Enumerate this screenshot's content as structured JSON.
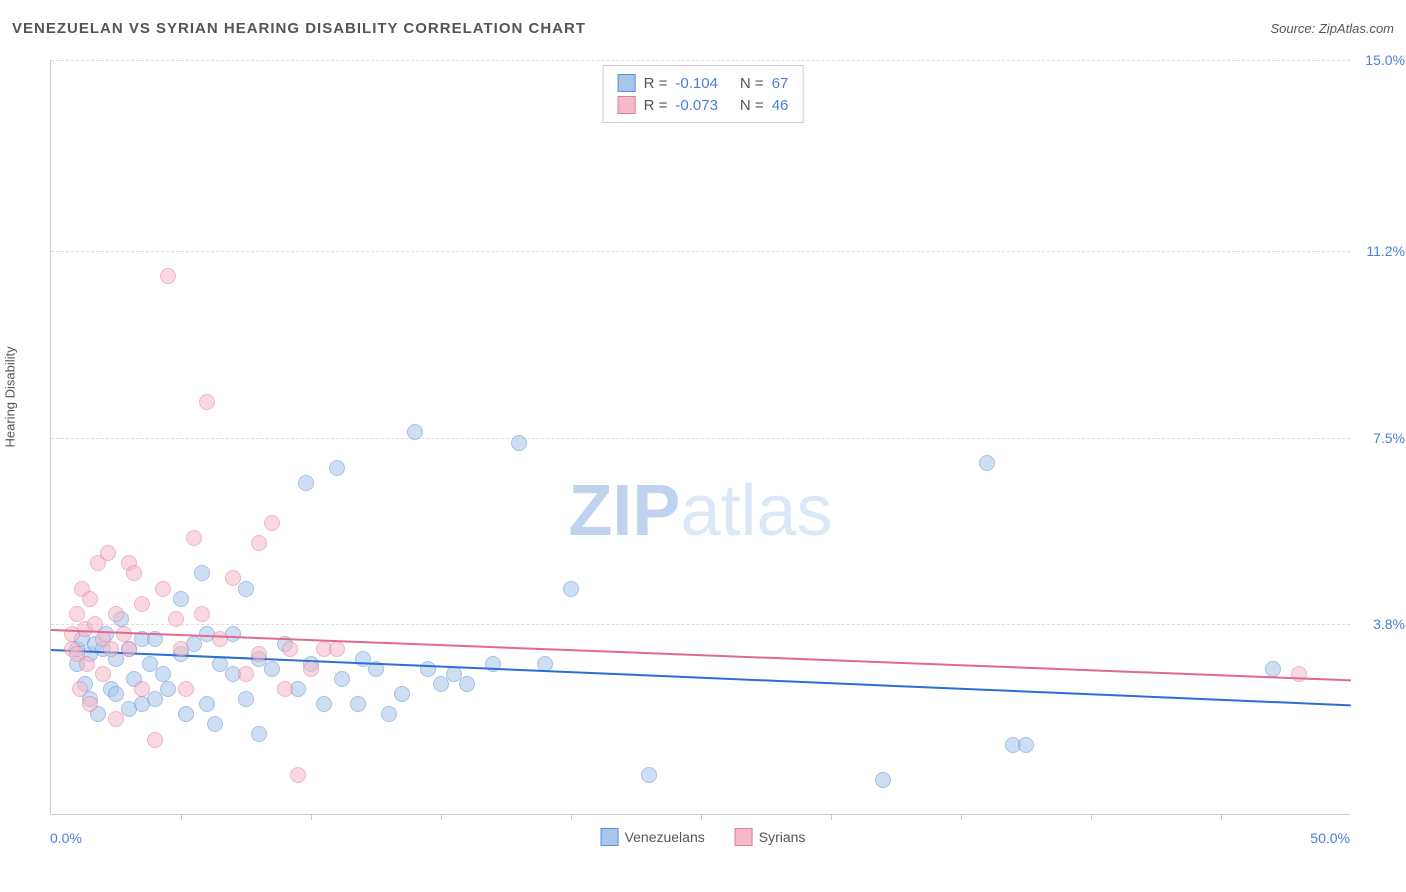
{
  "title": "VENEZUELAN VS SYRIAN HEARING DISABILITY CORRELATION CHART",
  "source": "Source: ZipAtlas.com",
  "watermark_bold": "ZIP",
  "watermark_light": "atlas",
  "chart": {
    "type": "scatter",
    "x_axis": {
      "min": 0,
      "max": 50,
      "label_min": "0.0%",
      "label_max": "50.0%",
      "tick_step": 5
    },
    "y_axis": {
      "min": 0,
      "max": 15,
      "title": "Hearing Disability",
      "ticks": [
        {
          "value": 3.8,
          "label": "3.8%"
        },
        {
          "value": 7.5,
          "label": "7.5%"
        },
        {
          "value": 11.2,
          "label": "11.2%"
        },
        {
          "value": 15.0,
          "label": "15.0%"
        }
      ]
    },
    "series": [
      {
        "name": "Venezuelans",
        "fill": "#a8c6ea",
        "stroke": "#5b8fd6",
        "opacity": 0.55,
        "marker_radius": 8,
        "trend": {
          "color": "#2b6fd6",
          "y_at_x0": 3.3,
          "y_at_xmax": 2.2
        },
        "stats": {
          "R": "-0.104",
          "N": "67"
        },
        "points": [
          [
            1,
            3.3
          ],
          [
            1,
            3.0
          ],
          [
            1.2,
            3.5
          ],
          [
            1.3,
            2.6
          ],
          [
            1.5,
            3.2
          ],
          [
            1.5,
            2.3
          ],
          [
            1.7,
            3.4
          ],
          [
            1.8,
            2.0
          ],
          [
            2,
            3.3
          ],
          [
            2.1,
            3.6
          ],
          [
            2.3,
            2.5
          ],
          [
            2.5,
            3.1
          ],
          [
            2.5,
            2.4
          ],
          [
            2.7,
            3.9
          ],
          [
            3,
            3.3
          ],
          [
            3,
            2.1
          ],
          [
            3.2,
            2.7
          ],
          [
            3.5,
            3.5
          ],
          [
            3.5,
            2.2
          ],
          [
            3.8,
            3.0
          ],
          [
            4,
            3.5
          ],
          [
            4,
            2.3
          ],
          [
            4.3,
            2.8
          ],
          [
            4.5,
            2.5
          ],
          [
            5,
            4.3
          ],
          [
            5,
            3.2
          ],
          [
            5.2,
            2.0
          ],
          [
            5.5,
            3.4
          ],
          [
            5.8,
            4.8
          ],
          [
            6,
            3.6
          ],
          [
            6,
            2.2
          ],
          [
            6.3,
            1.8
          ],
          [
            6.5,
            3.0
          ],
          [
            7,
            3.6
          ],
          [
            7,
            2.8
          ],
          [
            7.5,
            4.5
          ],
          [
            7.5,
            2.3
          ],
          [
            8,
            3.1
          ],
          [
            8,
            1.6
          ],
          [
            8.5,
            2.9
          ],
          [
            9,
            3.4
          ],
          [
            9.5,
            2.5
          ],
          [
            9.8,
            6.6
          ],
          [
            10,
            3.0
          ],
          [
            10.5,
            2.2
          ],
          [
            11,
            6.9
          ],
          [
            11.2,
            2.7
          ],
          [
            11.8,
            2.2
          ],
          [
            12,
            3.1
          ],
          [
            12.5,
            2.9
          ],
          [
            13,
            2.0
          ],
          [
            13.5,
            2.4
          ],
          [
            14,
            7.6
          ],
          [
            14.5,
            2.9
          ],
          [
            15,
            2.6
          ],
          [
            15.5,
            2.8
          ],
          [
            16,
            2.6
          ],
          [
            17,
            3.0
          ],
          [
            18,
            7.4
          ],
          [
            19,
            3.0
          ],
          [
            20,
            4.5
          ],
          [
            23,
            0.8
          ],
          [
            32,
            0.7
          ],
          [
            36,
            7.0
          ],
          [
            37,
            1.4
          ],
          [
            37.5,
            1.4
          ],
          [
            47,
            2.9
          ]
        ]
      },
      {
        "name": "Syrians",
        "fill": "#f5b9c9",
        "stroke": "#df7d9c",
        "opacity": 0.55,
        "marker_radius": 8,
        "trend": {
          "color": "#e06a8f",
          "y_at_x0": 3.7,
          "y_at_xmax": 2.7
        },
        "stats": {
          "R": "-0.073",
          "N": "46"
        },
        "points": [
          [
            0.8,
            3.6
          ],
          [
            0.8,
            3.3
          ],
          [
            1,
            4.0
          ],
          [
            1,
            3.2
          ],
          [
            1.1,
            2.5
          ],
          [
            1.2,
            4.5
          ],
          [
            1.3,
            3.7
          ],
          [
            1.4,
            3.0
          ],
          [
            1.5,
            4.3
          ],
          [
            1.5,
            2.2
          ],
          [
            1.7,
            3.8
          ],
          [
            1.8,
            5.0
          ],
          [
            2,
            3.5
          ],
          [
            2,
            2.8
          ],
          [
            2.2,
            5.2
          ],
          [
            2.3,
            3.3
          ],
          [
            2.5,
            4.0
          ],
          [
            2.5,
            1.9
          ],
          [
            2.8,
            3.6
          ],
          [
            3,
            5.0
          ],
          [
            3,
            3.3
          ],
          [
            3.2,
            4.8
          ],
          [
            3.5,
            4.2
          ],
          [
            3.5,
            2.5
          ],
          [
            4,
            1.5
          ],
          [
            4.3,
            4.5
          ],
          [
            4.5,
            10.7
          ],
          [
            4.8,
            3.9
          ],
          [
            5,
            3.3
          ],
          [
            5.2,
            2.5
          ],
          [
            5.5,
            5.5
          ],
          [
            5.8,
            4.0
          ],
          [
            6,
            8.2
          ],
          [
            6.5,
            3.5
          ],
          [
            7,
            4.7
          ],
          [
            7.5,
            2.8
          ],
          [
            8,
            3.2
          ],
          [
            8,
            5.4
          ],
          [
            8.5,
            5.8
          ],
          [
            9,
            2.5
          ],
          [
            9.2,
            3.3
          ],
          [
            9.5,
            0.8
          ],
          [
            10,
            2.9
          ],
          [
            10.5,
            3.3
          ],
          [
            11,
            3.3
          ],
          [
            48,
            2.8
          ]
        ]
      }
    ],
    "grid_color": "#dddddd",
    "axis_color": "#cccccc",
    "label_color": "#4a7fd8",
    "text_color": "#555555",
    "background": "#ffffff"
  },
  "bottom_legend": [
    {
      "label": "Venezuelans",
      "fill": "#a8c6ea",
      "stroke": "#5b8fd6"
    },
    {
      "label": "Syrians",
      "fill": "#f5b9c9",
      "stroke": "#df7d9c"
    }
  ]
}
